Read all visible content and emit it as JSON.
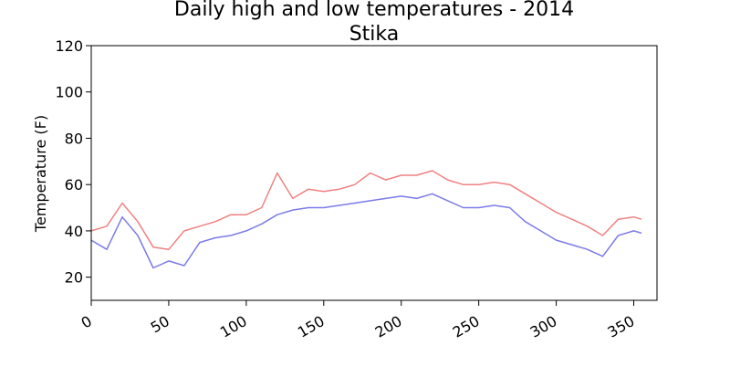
{
  "chart_data": {
    "type": "line",
    "title": "Daily high and low temperatures - 2014",
    "subtitle": "Stika",
    "xlabel": "",
    "ylabel": "Temperature (F)",
    "xlim": [
      0,
      365
    ],
    "ylim": [
      10,
      120
    ],
    "xticks": [
      0,
      50,
      100,
      150,
      200,
      250,
      300,
      350
    ],
    "yticks": [
      20,
      40,
      60,
      80,
      100,
      120
    ],
    "grid": false,
    "legend": "none",
    "x_anchor": [
      0,
      10,
      20,
      30,
      40,
      50,
      60,
      70,
      80,
      90,
      100,
      110,
      120,
      130,
      140,
      150,
      160,
      170,
      180,
      190,
      200,
      210,
      220,
      230,
      240,
      250,
      260,
      270,
      280,
      290,
      300,
      310,
      320,
      330,
      340,
      350,
      355
    ],
    "series": [
      {
        "color": "#f08080",
        "values": [
          40,
          42,
          52,
          44,
          33,
          32,
          40,
          42,
          44,
          47,
          47,
          50,
          65,
          54,
          58,
          57,
          58,
          60,
          65,
          62,
          64,
          64,
          66,
          62,
          60,
          60,
          61,
          60,
          56,
          52,
          48,
          45,
          42,
          38,
          45,
          46,
          45
        ]
      },
      {
        "color": "#7b7be8",
        "values": [
          36,
          32,
          46,
          38,
          24,
          27,
          25,
          35,
          37,
          38,
          40,
          43,
          47,
          49,
          50,
          50,
          51,
          52,
          53,
          54,
          55,
          54,
          56,
          53,
          50,
          50,
          51,
          50,
          44,
          40,
          36,
          34,
          32,
          29,
          38,
          40,
          39
        ]
      }
    ]
  }
}
